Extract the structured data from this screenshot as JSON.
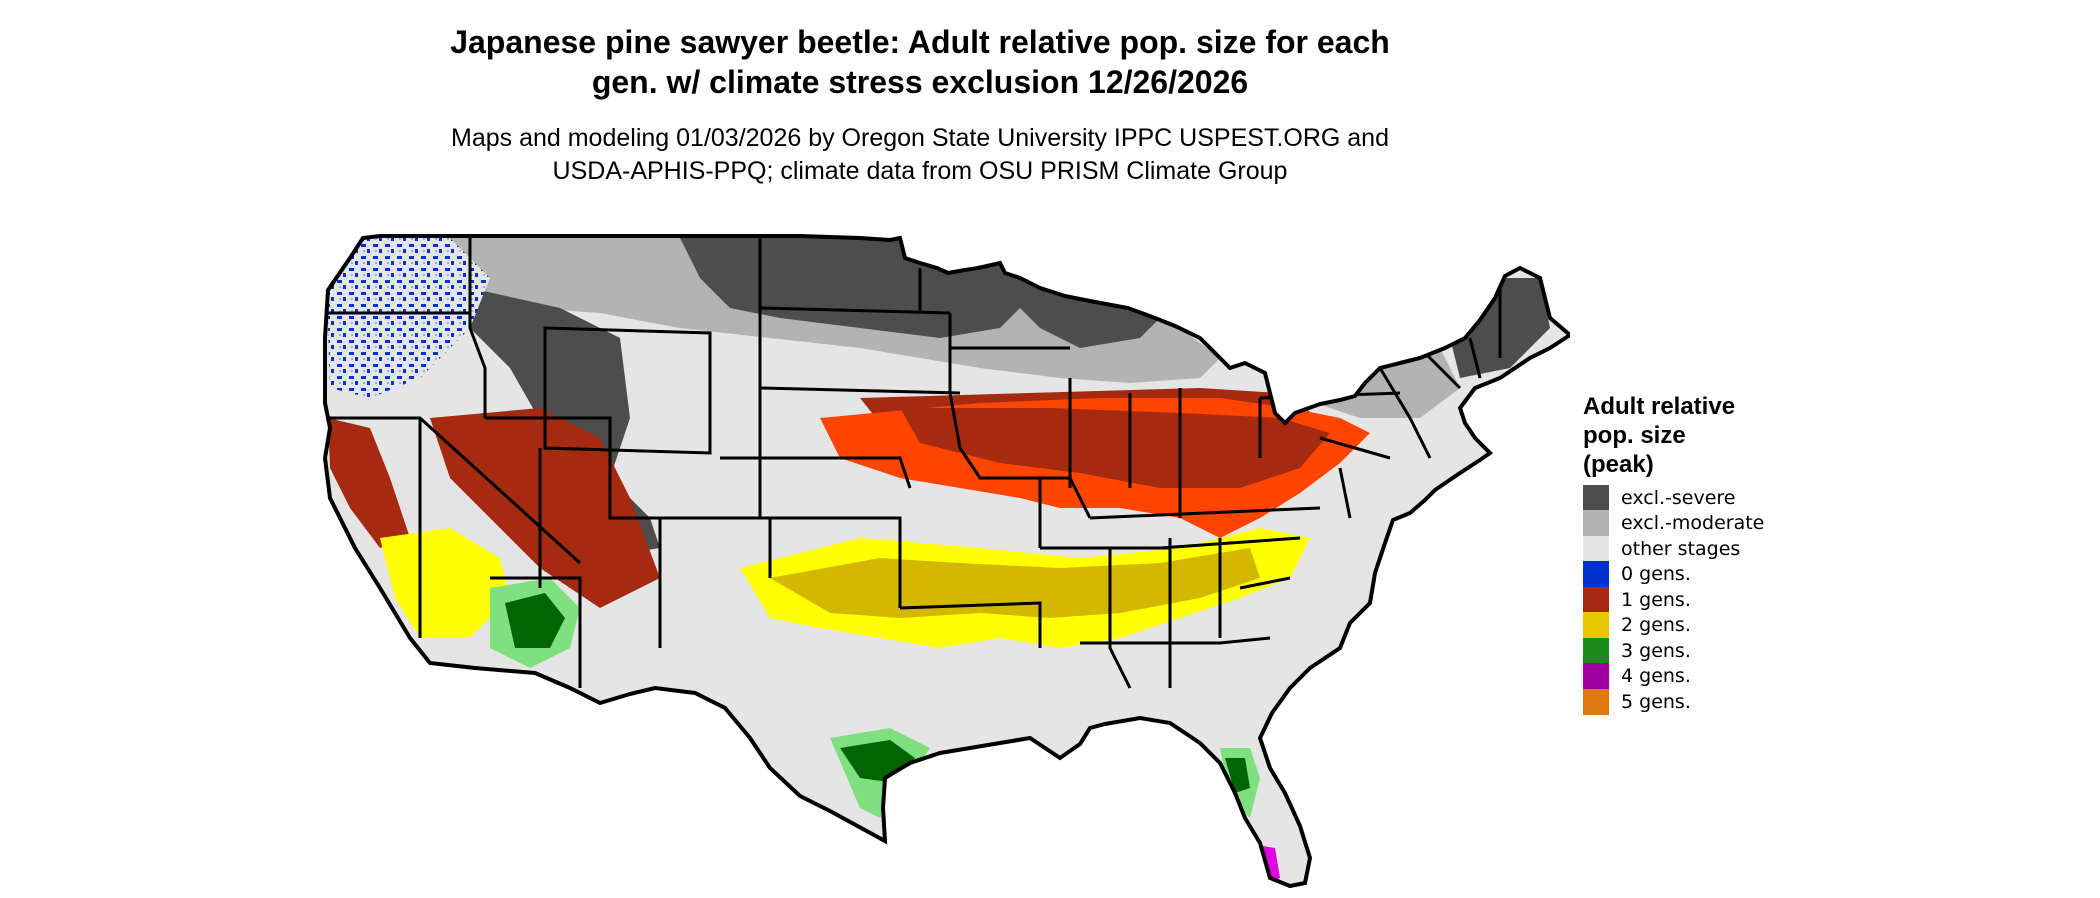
{
  "title_line1": "Japanese pine sawyer beetle: Adult relative pop. size for each",
  "title_line2": "gen. w/ climate stress exclusion 12/26/2026",
  "subtitle_line1": "Maps and modeling 01/03/2026 by Oregon State University IPPC USPEST.ORG and",
  "subtitle_line2": "USDA-APHIS-PPQ; climate data from OSU PRISM Climate Group",
  "legend": {
    "title_lines": [
      "Adult relative",
      "pop. size",
      "(peak)"
    ],
    "items": [
      {
        "label": "excl.-severe",
        "color": "#4d4d4d"
      },
      {
        "label": "excl.-moderate",
        "color": "#b3b3b3"
      },
      {
        "label": "other stages",
        "color": "#e5e5e5"
      },
      {
        "label": "0 gens.",
        "color": "#0033cc"
      },
      {
        "label": "1 gens.",
        "color": "#a52a0f"
      },
      {
        "label": "2 gens.",
        "color": "#e6c800"
      },
      {
        "label": "3 gens.",
        "color": "#1a8c1a"
      },
      {
        "label": "4 gens.",
        "color": "#a000a0"
      },
      {
        "label": "5 gens.",
        "color": "#e07a10"
      }
    ]
  },
  "map_colors": {
    "land": "#e5e5e5",
    "excl_severe": "#4d4d4d",
    "excl_moderate": "#b3b3b3",
    "zero_gens": "#0033cc",
    "one_gen_dark": "#a52a0f",
    "one_gen_bright": "#ff4500",
    "two_gens_dark": "#d4b800",
    "two_gens_bright": "#ffff00",
    "three_gens_dark": "#006400",
    "three_gens_light": "#7ee07e",
    "four_gens": "#e000e0",
    "state_lines": "#000000"
  }
}
